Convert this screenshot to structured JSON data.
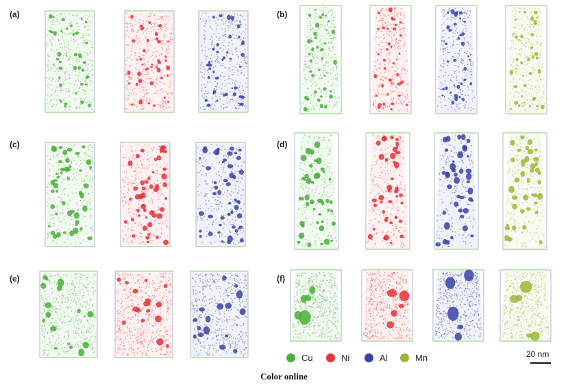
{
  "figure": {
    "panels": [
      {
        "label": "(a)",
        "elements": [
          "Cu",
          "Ni",
          "Al"
        ]
      },
      {
        "label": "(b)",
        "elements": [
          "Cu",
          "Ni",
          "Al",
          "Mn"
        ]
      },
      {
        "label": "(c)",
        "elements": [
          "Cu",
          "Ni",
          "Al"
        ]
      },
      {
        "label": "(d)",
        "elements": [
          "Cu",
          "Ni",
          "Al",
          "Mn"
        ]
      },
      {
        "label": "(e)",
        "elements": [
          "Cu",
          "Ni",
          "Al"
        ]
      },
      {
        "label": "(f)",
        "elements": [
          "Cu",
          "Ni",
          "Al",
          "Mn"
        ]
      }
    ],
    "legend": [
      {
        "name": "Cu",
        "color": "#4caf3c"
      },
      {
        "name": "Ni",
        "color": "#e8333a"
      },
      {
        "name": "Al",
        "color": "#3a44a8"
      },
      {
        "name": "Mn",
        "color": "#9cb83a"
      }
    ],
    "scale_bar": "20 nm",
    "caption": "Color online"
  }
}
